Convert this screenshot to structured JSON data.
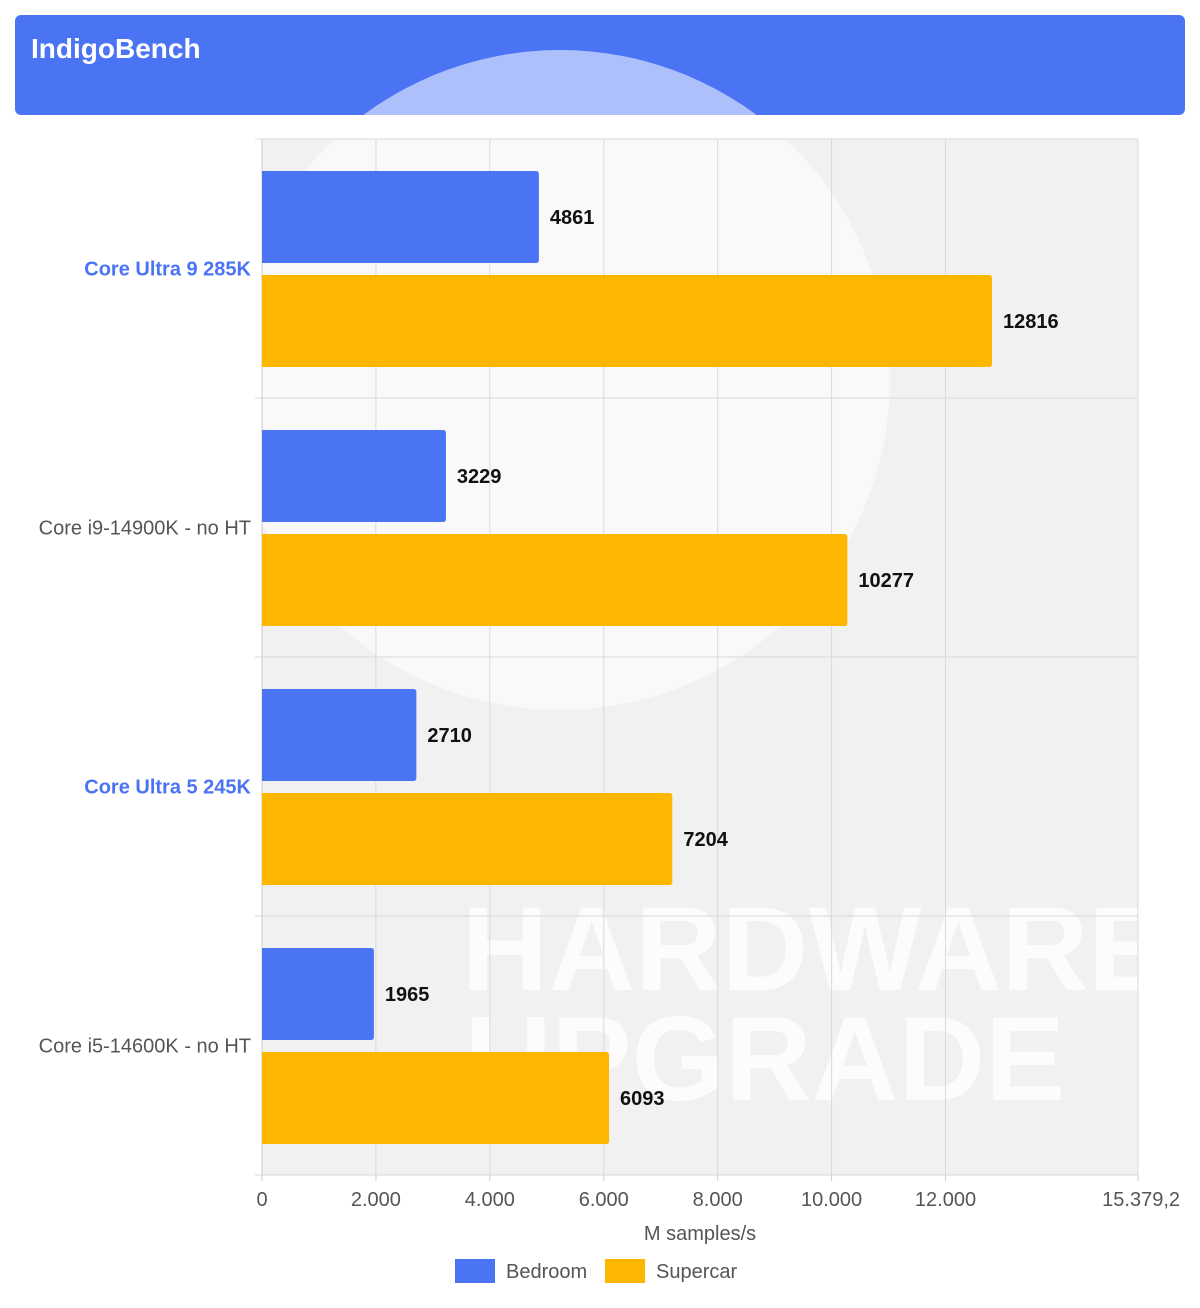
{
  "header": {
    "title": "IndigoBench"
  },
  "colors": {
    "header_bg": "#4b74f5",
    "bedroom": "#4b74f5",
    "supercar": "#fdb700",
    "highlight_label": "#4b74f5",
    "normal_label": "#555555"
  },
  "watermark": {
    "line1": "HARDWARE",
    "line2": "UPGRADE"
  },
  "chart_data": {
    "type": "bar",
    "orientation": "horizontal",
    "title": "IndigoBench",
    "categories": [
      "Core Ultra 9 285K",
      "Core i9-14900K - no HT",
      "Core Ultra 5 245K",
      "Core i5-14600K - no HT"
    ],
    "highlighted_categories": [
      "Core Ultra 9 285K",
      "Core Ultra 5 245K"
    ],
    "series": [
      {
        "name": "Bedroom",
        "values": [
          4861,
          3229,
          2710,
          1965
        ]
      },
      {
        "name": "Supercar",
        "values": [
          12816,
          10277,
          7204,
          6093
        ]
      }
    ],
    "value_labels": {
      "Bedroom": [
        "4861",
        "3229",
        "2710",
        "1965"
      ],
      "Supercar": [
        "12816",
        "10277",
        "7204",
        "6093"
      ]
    },
    "xlabel": "M samples/s",
    "ylabel": "",
    "xlim": [
      0,
      15379.2
    ],
    "x_ticks": [
      0,
      2000,
      4000,
      6000,
      8000,
      10000,
      12000,
      15379.2
    ],
    "x_tick_labels": [
      "0",
      "2.000",
      "4.000",
      "6.000",
      "8.000",
      "10.000",
      "12.000",
      "15.379,2"
    ],
    "grid": true,
    "legend_position": "bottom"
  }
}
